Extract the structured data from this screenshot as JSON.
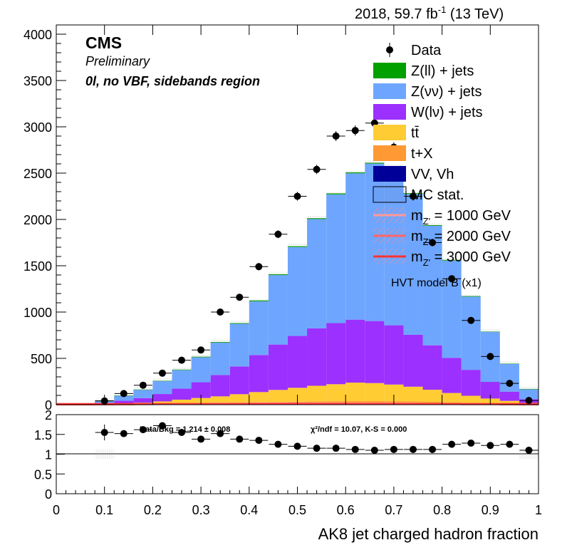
{
  "header": {
    "lumi_text": "2018, 59.7 fb",
    "lumi_sup": "-1",
    "energy_text": "(13 TeV)"
  },
  "labels": {
    "experiment": "CMS",
    "status": "Preliminary",
    "region": "0l, no VBF, sidebands region"
  },
  "colors": {
    "zll": "#00a000",
    "znn": "#6ea6ff",
    "wln": "#9c30ff",
    "ttbar": "#ffcc33",
    "tX": "#ff9933",
    "vv": "#000099",
    "sig1000": "#ff9999",
    "sig2000": "#ff6666",
    "sig3000": "#ff3333"
  },
  "legend": {
    "position": "top-right",
    "items": [
      {
        "key": "data",
        "label": "Data",
        "style": "marker"
      },
      {
        "key": "zll",
        "label": "Z(ll) + jets",
        "style": "fill"
      },
      {
        "key": "znn",
        "label": "Z(νν) + jets",
        "style": "fill"
      },
      {
        "key": "wln",
        "label": "W(lν) + jets",
        "style": "fill"
      },
      {
        "key": "ttbar",
        "label": "tt̄",
        "style": "fill"
      },
      {
        "key": "tX",
        "label": "t+X",
        "style": "fill"
      },
      {
        "key": "vv",
        "label": "VV, Vh",
        "style": "fill"
      },
      {
        "key": "mcstat",
        "label": "MC stat.",
        "style": "hatch"
      },
      {
        "key": "sig1000",
        "label": "m  = 1000 GeV",
        "sub": "Z'",
        "style": "line"
      },
      {
        "key": "sig2000",
        "label": "m  = 2000 GeV",
        "sub": "Z'",
        "style": "line"
      },
      {
        "key": "sig3000",
        "label": "m  = 3000 GeV",
        "sub": "Z'",
        "style": "line"
      }
    ],
    "model_note": "HVT model B (x1)"
  },
  "chart_data": [
    {
      "type": "bar",
      "stacked": true,
      "xlabel": "AK8 jet charged hadron fraction",
      "ylabel": "",
      "xlim": [
        0,
        1
      ],
      "ylim": [
        0,
        4100
      ],
      "x_ticks": [
        0,
        0.1,
        0.2,
        0.3,
        0.4,
        0.5,
        0.6,
        0.7,
        0.8,
        0.9,
        1
      ],
      "y_ticks": [
        0,
        500,
        1000,
        1500,
        2000,
        2500,
        3000,
        3500,
        4000
      ],
      "bin_edges": [
        0,
        0.04,
        0.08,
        0.12,
        0.16,
        0.2,
        0.24,
        0.28,
        0.32,
        0.36,
        0.4,
        0.44,
        0.48,
        0.52,
        0.56,
        0.6,
        0.64,
        0.68,
        0.72,
        0.76,
        0.8,
        0.84,
        0.88,
        0.92,
        0.96,
        1.0
      ],
      "series": [
        {
          "name": "VV, Vh",
          "key": "vv",
          "values": [
            0,
            0,
            1,
            2,
            3,
            5,
            6,
            7,
            8,
            9,
            10,
            11,
            12,
            13,
            14,
            15,
            15,
            15,
            14,
            13,
            11,
            9,
            7,
            5,
            3
          ]
        },
        {
          "name": "t+X",
          "key": "tX",
          "values": [
            0,
            0,
            1,
            2,
            3,
            5,
            8,
            10,
            12,
            14,
            16,
            18,
            20,
            21,
            22,
            23,
            23,
            22,
            20,
            18,
            15,
            12,
            9,
            6,
            4
          ]
        },
        {
          "name": "tt̄",
          "key": "ttbar",
          "values": [
            0,
            0,
            3,
            8,
            15,
            25,
            40,
            55,
            70,
            90,
            110,
            130,
            150,
            170,
            185,
            200,
            195,
            180,
            160,
            130,
            100,
            75,
            50,
            30,
            12
          ]
        },
        {
          "name": "W(lν) + jets",
          "key": "wln",
          "values": [
            0,
            0,
            15,
            30,
            50,
            80,
            120,
            170,
            230,
            300,
            400,
            490,
            560,
            620,
            660,
            680,
            670,
            640,
            560,
            480,
            380,
            280,
            180,
            100,
            40
          ]
        },
        {
          "name": "Z(νν) + jets",
          "key": "znn",
          "values": [
            0,
            0,
            25,
            55,
            90,
            140,
            200,
            270,
            350,
            460,
            580,
            750,
            960,
            1180,
            1390,
            1580,
            1700,
            1700,
            1520,
            1290,
            1050,
            790,
            540,
            300,
            110
          ]
        },
        {
          "name": "Z(ll) + jets",
          "key": "zll",
          "values": [
            0,
            0,
            1,
            2,
            3,
            4,
            5,
            6,
            7,
            8,
            9,
            10,
            10,
            10,
            10,
            10,
            10,
            10,
            9,
            8,
            7,
            6,
            4,
            3,
            1
          ]
        }
      ],
      "signals": [
        {
          "name": "m Z' = 1000 GeV",
          "key": "sig1000",
          "values": [
            0,
            0,
            3,
            5,
            7,
            9,
            11,
            12,
            13,
            14,
            15,
            16,
            17,
            17,
            17,
            16,
            15,
            14,
            13,
            12,
            11,
            10,
            8,
            6,
            4
          ]
        },
        {
          "name": "m Z' = 2000 GeV",
          "key": "sig2000",
          "values": [
            0,
            0,
            2,
            3,
            4,
            5,
            6,
            7,
            8,
            9,
            10,
            11,
            12,
            12,
            12,
            11,
            10,
            9,
            8,
            7,
            6,
            5,
            4,
            3,
            2
          ]
        },
        {
          "name": "m Z' = 3000 GeV",
          "key": "sig3000",
          "values": [
            0,
            0,
            1,
            2,
            3,
            4,
            5,
            6,
            6,
            7,
            7,
            8,
            8,
            8,
            8,
            7,
            7,
            6,
            5,
            4,
            4,
            3,
            3,
            2,
            1
          ]
        }
      ],
      "data": {
        "name": "Data",
        "x": [
          0.14,
          0.18,
          0.22,
          0.26,
          0.3,
          0.34,
          0.38,
          0.42,
          0.46,
          0.5,
          0.54,
          0.58,
          0.62,
          0.66,
          0.7,
          0.74,
          0.78,
          0.82,
          0.86,
          0.9,
          0.94,
          0.98,
          0.1
        ],
        "y": [
          120,
          210,
          340,
          480,
          590,
          1000,
          1160,
          1490,
          1840,
          2250,
          2540,
          2900,
          2960,
          3040,
          2780,
          2250,
          1750,
          1360,
          910,
          520,
          230,
          45,
          40
        ]
      }
    },
    {
      "type": "scatter",
      "xlabel": "AK8 jet charged hadron fraction",
      "ylabel": "",
      "xlim": [
        0,
        1
      ],
      "ylim": [
        0,
        2
      ],
      "y_ticks": [
        0,
        0.5,
        1,
        1.5,
        2
      ],
      "reference_line": 1,
      "data_ratio": {
        "x": [
          0.1,
          0.14,
          0.18,
          0.22,
          0.26,
          0.3,
          0.34,
          0.38,
          0.42,
          0.46,
          0.5,
          0.54,
          0.58,
          0.62,
          0.66,
          0.7,
          0.74,
          0.78,
          0.82,
          0.86,
          0.9,
          0.94,
          0.98
        ],
        "y": [
          1.55,
          1.52,
          1.62,
          1.72,
          1.55,
          1.38,
          1.52,
          1.38,
          1.35,
          1.25,
          1.2,
          1.15,
          1.15,
          1.12,
          1.1,
          1.12,
          1.12,
          1.12,
          1.25,
          1.28,
          1.22,
          1.25,
          1.1
        ]
      },
      "annotations": {
        "data_bkg": "Data/Bkg = 1.214 ± 0.008",
        "chi2": "χ²/ndf = 10.07,   K-S = 0.000"
      }
    }
  ]
}
